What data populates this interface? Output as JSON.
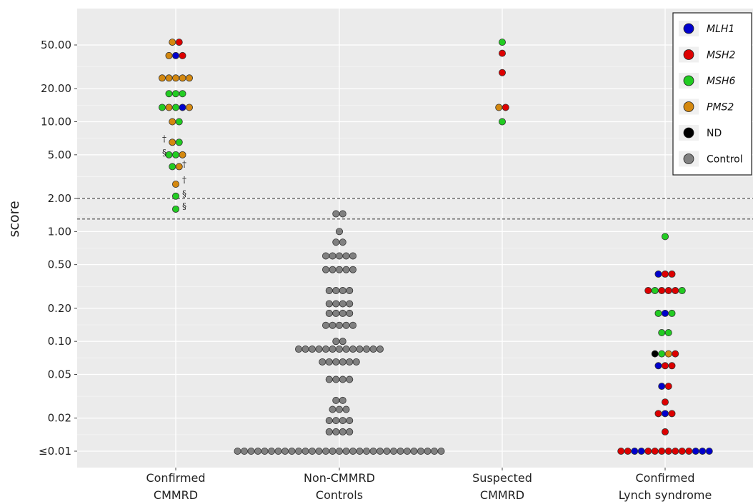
{
  "chart_data": {
    "type": "scatter",
    "ylabel": "score",
    "y_scale": "log",
    "y_ticks": [
      {
        "value": 50,
        "label": "50.00"
      },
      {
        "value": 20,
        "label": "20.00"
      },
      {
        "value": 10,
        "label": "10.00"
      },
      {
        "value": 5,
        "label": "5.00"
      },
      {
        "value": 2,
        "label": "2.00"
      },
      {
        "value": 1,
        "label": "1.00"
      },
      {
        "value": 0.5,
        "label": "0.50"
      },
      {
        "value": 0.2,
        "label": "0.20"
      },
      {
        "value": 0.1,
        "label": "0.10"
      },
      {
        "value": 0.05,
        "label": "0.05"
      },
      {
        "value": 0.02,
        "label": "0.02"
      },
      {
        "value": 0.01,
        "label": "≤0.01"
      }
    ],
    "categories": [
      {
        "line1": "Confirmed",
        "line2": "CMMRD"
      },
      {
        "line1": "Non-CMMRD",
        "line2": "Controls"
      },
      {
        "line1": "Suspected",
        "line2": "CMMRD"
      },
      {
        "line1": "Confirmed",
        "line2": "Lynch syndrome"
      }
    ],
    "thresholds": [
      2.0,
      1.3
    ],
    "grid": true,
    "legend_position": "top-right",
    "legend": [
      {
        "label": "MLH1",
        "color": "#0000cc",
        "italic": true
      },
      {
        "label": "MSH2",
        "color": "#dd0000",
        "italic": true
      },
      {
        "label": "MSH6",
        "color": "#22cc22",
        "italic": true
      },
      {
        "label": "PMS2",
        "color": "#d4880f",
        "italic": true
      },
      {
        "label": "ND",
        "color": "#000000",
        "italic": false
      },
      {
        "label": "Control",
        "color": "#808080",
        "italic": false
      }
    ],
    "groups": [
      {
        "category": 0,
        "rows": [
          {
            "y": 53,
            "points": [
              "PMS2",
              "MSH2"
            ]
          },
          {
            "y": 40,
            "points": [
              "PMS2",
              "MLH1",
              "MSH2"
            ]
          },
          {
            "y": 25,
            "points": [
              "PMS2",
              "PMS2",
              "PMS2",
              "PMS2",
              "PMS2"
            ]
          },
          {
            "y": 18,
            "points": [
              "MSH6",
              "MSH6",
              "MSH6"
            ]
          },
          {
            "y": 13.5,
            "points": [
              "MSH6",
              "PMS2",
              "MSH6",
              "MLH1",
              "PMS2"
            ]
          },
          {
            "y": 10,
            "points": [
              "PMS2",
              "MSH6"
            ]
          },
          {
            "y": 6.5,
            "points": [
              "PMS2",
              "MSH6"
            ]
          },
          {
            "y": 5,
            "points": [
              "MSH6",
              "MSH6",
              "PMS2"
            ]
          },
          {
            "y": 3.9,
            "points": [
              "MSH6",
              "PMS2"
            ]
          },
          {
            "y": 2.7,
            "points": [
              "PMS2"
            ]
          },
          {
            "y": 2.1,
            "points": [
              "MSH6"
            ]
          },
          {
            "y": 1.6,
            "points": [
              "MSH6"
            ]
          }
        ]
      },
      {
        "category": 1,
        "rows": [
          {
            "y": 1.45,
            "points": [
              "Control",
              "Control"
            ]
          },
          {
            "y": 1.0,
            "points": [
              "Control"
            ]
          },
          {
            "y": 0.8,
            "points": [
              "Control",
              "Control"
            ]
          },
          {
            "y": 0.6,
            "points": [
              "Control",
              "Control",
              "Control",
              "Control",
              "Control"
            ]
          },
          {
            "y": 0.45,
            "points": [
              "Control",
              "Control",
              "Control",
              "Control",
              "Control"
            ]
          },
          {
            "y": 0.29,
            "points": [
              "Control",
              "Control",
              "Control",
              "Control"
            ]
          },
          {
            "y": 0.22,
            "points": [
              "Control",
              "Control",
              "Control",
              "Control"
            ]
          },
          {
            "y": 0.18,
            "points": [
              "Control",
              "Control",
              "Control",
              "Control"
            ]
          },
          {
            "y": 0.14,
            "points": [
              "Control",
              "Control",
              "Control",
              "Control",
              "Control"
            ]
          },
          {
            "y": 0.1,
            "points": [
              "Control",
              "Control"
            ]
          },
          {
            "y": 0.085,
            "points": [
              "Control",
              "Control",
              "Control",
              "Control",
              "Control",
              "Control",
              "Control",
              "Control",
              "Control",
              "Control",
              "Control",
              "Control",
              "Control"
            ]
          },
          {
            "y": 0.065,
            "points": [
              "Control",
              "Control",
              "Control",
              "Control",
              "Control",
              "Control"
            ]
          },
          {
            "y": 0.045,
            "points": [
              "Control",
              "Control",
              "Control",
              "Control"
            ]
          },
          {
            "y": 0.029,
            "points": [
              "Control",
              "Control"
            ]
          },
          {
            "y": 0.024,
            "points": [
              "Control",
              "Control",
              "Control"
            ]
          },
          {
            "y": 0.019,
            "points": [
              "Control",
              "Control",
              "Control",
              "Control"
            ]
          },
          {
            "y": 0.015,
            "points": [
              "Control",
              "Control",
              "Control",
              "Control"
            ]
          },
          {
            "y": 0.01,
            "points": [
              "Control",
              "Control",
              "Control",
              "Control",
              "Control",
              "Control",
              "Control",
              "Control",
              "Control",
              "Control",
              "Control",
              "Control",
              "Control",
              "Control",
              "Control",
              "Control",
              "Control",
              "Control",
              "Control",
              "Control",
              "Control",
              "Control",
              "Control",
              "Control",
              "Control",
              "Control",
              "Control",
              "Control",
              "Control",
              "Control",
              "Control"
            ]
          }
        ]
      },
      {
        "category": 2,
        "rows": [
          {
            "y": 53,
            "points": [
              "MSH6"
            ]
          },
          {
            "y": 42,
            "points": [
              "MSH2"
            ]
          },
          {
            "y": 28,
            "points": [
              "MSH2"
            ]
          },
          {
            "y": 13.5,
            "points": [
              "PMS2",
              "MSH2"
            ]
          },
          {
            "y": 10,
            "points": [
              "MSH6"
            ]
          }
        ]
      },
      {
        "category": 3,
        "rows": [
          {
            "y": 0.9,
            "points": [
              "MSH6"
            ]
          },
          {
            "y": 0.41,
            "points": [
              "MLH1",
              "MSH2",
              "MSH2"
            ]
          },
          {
            "y": 0.29,
            "points": [
              "MSH2",
              "MSH6",
              "MSH2",
              "MSH2",
              "MSH2",
              "MSH6"
            ]
          },
          {
            "y": 0.18,
            "points": [
              "MSH6",
              "MLH1",
              "MSH6"
            ]
          },
          {
            "y": 0.12,
            "points": [
              "MSH6",
              "MSH6"
            ]
          },
          {
            "y": 0.077,
            "points": [
              "ND",
              "MSH6",
              "PMS2",
              "MSH2"
            ]
          },
          {
            "y": 0.06,
            "points": [
              "MLH1",
              "MSH2",
              "MSH2"
            ]
          },
          {
            "y": 0.039,
            "points": [
              "MLH1",
              "MSH2"
            ]
          },
          {
            "y": 0.028,
            "points": [
              "MSH2"
            ]
          },
          {
            "y": 0.022,
            "points": [
              "MSH2",
              "MLH1",
              "MSH2"
            ]
          },
          {
            "y": 0.015,
            "points": [
              "MSH2"
            ]
          },
          {
            "y": 0.01,
            "points": [
              "MSH2",
              "MSH2",
              "MLH1",
              "MLH1",
              "MSH2",
              "MSH2",
              "MSH2",
              "MSH2",
              "MSH2",
              "MSH2",
              "MSH2",
              "MLH1",
              "MLH1",
              "MLH1"
            ]
          }
        ]
      }
    ],
    "annotations": [
      {
        "text": "†",
        "category": 0,
        "y": 7.0,
        "side": "left"
      },
      {
        "text": "§",
        "category": 0,
        "y": 5.2,
        "side": "left"
      },
      {
        "text": "†",
        "category": 0,
        "y": 4.1,
        "side": "right"
      },
      {
        "text": "†",
        "category": 0,
        "y": 2.95,
        "side": "right"
      },
      {
        "text": "§",
        "category": 0,
        "y": 2.2,
        "side": "right"
      },
      {
        "text": "§",
        "category": 0,
        "y": 1.7,
        "side": "right"
      }
    ]
  }
}
